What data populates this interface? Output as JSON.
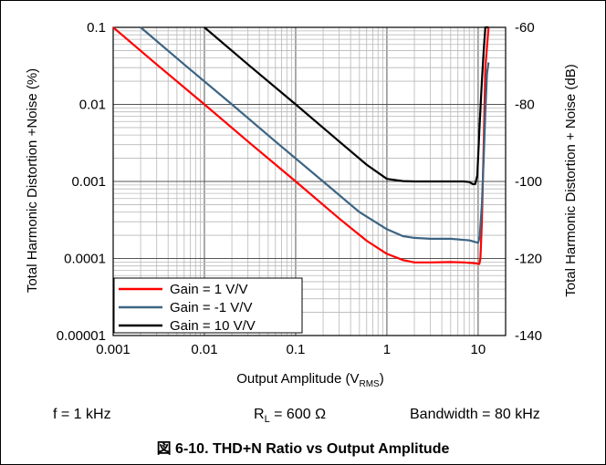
{
  "chart_data": {
    "type": "line",
    "xlabel_main": "Output Amplitude (V",
    "xlabel_sub": "RMS",
    "xlabel_end": ")",
    "ylabel_left": "Total Harmonic Distortion +Noise (%)",
    "ylabel_right": "Total Harmonic Distortion + Noise (dB)",
    "x_scale": "log",
    "xlim": [
      0.001,
      20
    ],
    "x_ticks": [
      "0.001",
      "0.01",
      "0.1",
      "1",
      "10"
    ],
    "x_tick_values": [
      0.001,
      0.01,
      0.1,
      1,
      10
    ],
    "y_scale": "log",
    "ylim": [
      1e-05,
      0.1
    ],
    "y_ticks_left": [
      "0.1",
      "0.01",
      "0.001",
      "0.0001",
      "0.00001"
    ],
    "y_tick_values_left": [
      0.1,
      0.01,
      0.001,
      0.0001,
      1e-05
    ],
    "y_ticks_right": [
      "-60",
      "-80",
      "-100",
      "-120",
      "-140"
    ],
    "grid": true,
    "legend_position": "bottom-left",
    "series": [
      {
        "name": "Gain = 1 V/V",
        "color": "#ff0000",
        "x": [
          0.001,
          0.003,
          0.01,
          0.03,
          0.1,
          0.3,
          0.6,
          1.0,
          1.5,
          2,
          3,
          5,
          7,
          9,
          10.3,
          10.6,
          11,
          11.5,
          12,
          13
        ],
        "y": [
          0.1,
          0.033,
          0.01,
          0.0033,
          0.001,
          0.00033,
          0.00017,
          0.000115,
          9.55e-05,
          8.9e-05,
          8.9e-05,
          9e-05,
          8.9e-05,
          8.7e-05,
          8.5e-05,
          0.0001,
          0.0003,
          0.003,
          0.03,
          0.1
        ]
      },
      {
        "name": "Gain = -1 V/V",
        "color": "#3c6482",
        "x": [
          0.002,
          0.006,
          0.02,
          0.06,
          0.2,
          0.5,
          1.0,
          1.5,
          2,
          3,
          5,
          8,
          10,
          10.4,
          11,
          11.5,
          12,
          12.5,
          13
        ],
        "y": [
          0.1,
          0.033,
          0.01,
          0.0033,
          0.001,
          0.0004,
          0.00024,
          0.000195,
          0.000185,
          0.00018,
          0.00018,
          0.000172,
          0.00016,
          0.00019,
          0.0005,
          0.002,
          0.008,
          0.025,
          0.035
        ]
      },
      {
        "name": "Gain = 10 V/V",
        "color": "#000000",
        "x": [
          0.01,
          0.03,
          0.1,
          0.3,
          0.6,
          1.0,
          1.5,
          2,
          3,
          5,
          7,
          8,
          8.8,
          9.3,
          9.8,
          10.3,
          11,
          11.5,
          12,
          13
        ],
        "y": [
          0.1,
          0.033,
          0.01,
          0.0033,
          0.00165,
          0.00108,
          0.00101,
          0.001,
          0.001,
          0.001,
          0.001,
          0.00098,
          0.00092,
          0.00093,
          0.0012,
          0.0045,
          0.02,
          0.05,
          0.1,
          0.1
        ]
      }
    ]
  },
  "conditions": {
    "frequency": "f = 1 kHz",
    "load_main": "R",
    "load_sub": "L",
    "load_value": " = 600 Ω",
    "bandwidth": "Bandwidth = 80 kHz"
  },
  "caption": "図 6-10. THD+N Ratio vs Output Amplitude"
}
